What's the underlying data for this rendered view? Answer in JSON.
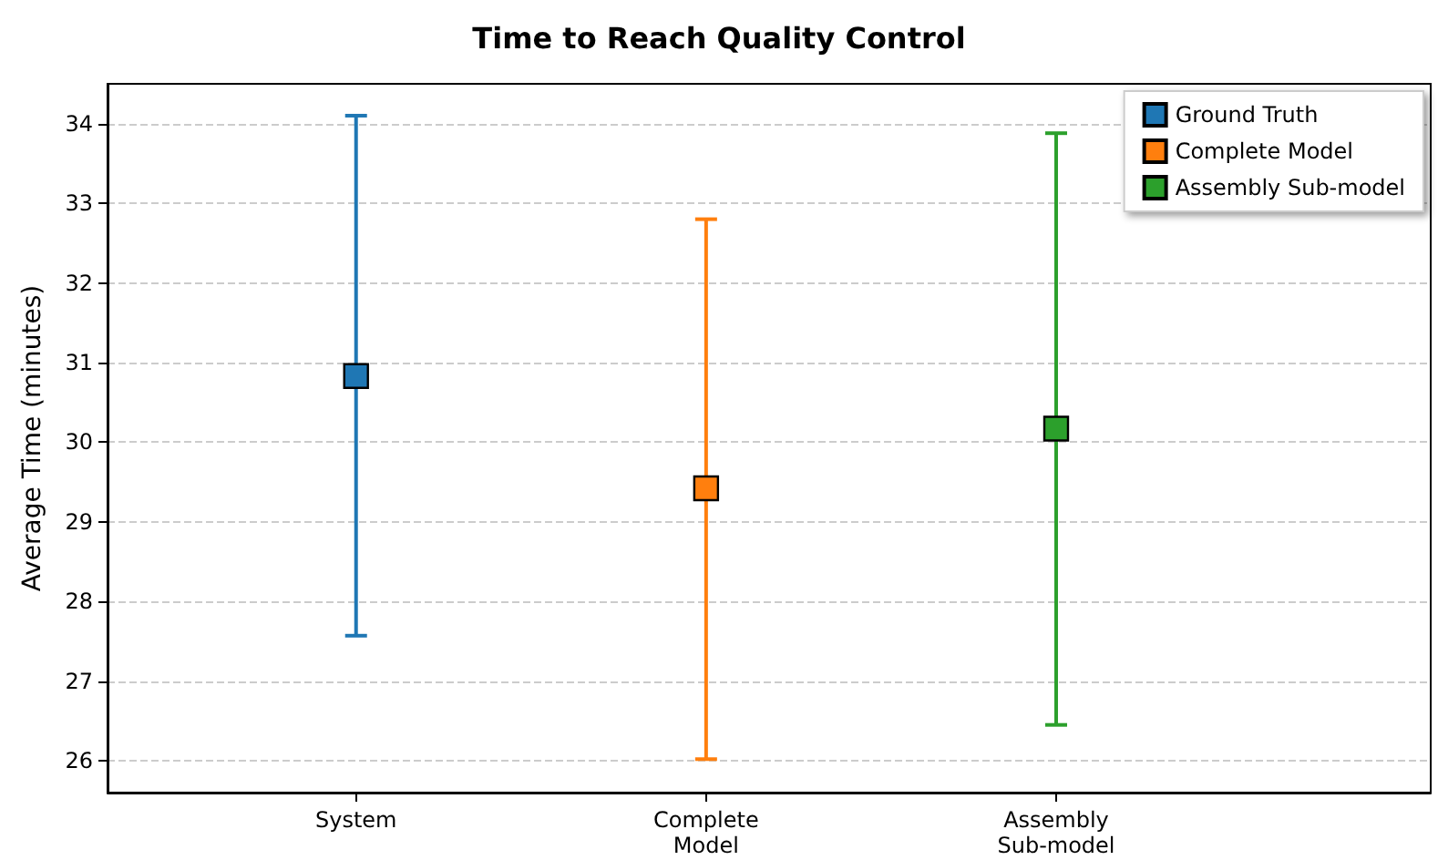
{
  "chart_data": {
    "type": "scatter",
    "title": "Time to Reach Quality Control",
    "ylabel": "Average Time (minutes)",
    "categories": [
      "System",
      "Complete\nModel",
      "Assembly\nSub-model"
    ],
    "series": [
      {
        "name": "Ground Truth",
        "color": "#1f77b4",
        "values": [
          30.83,
          null,
          null
        ],
        "errors": [
          [
            27.57,
            34.1
          ],
          null,
          null
        ]
      },
      {
        "name": "Complete Model",
        "color": "#ff7f0e",
        "values": [
          null,
          29.42,
          null
        ],
        "errors": [
          null,
          [
            26.02,
            32.8
          ],
          null
        ]
      },
      {
        "name": "Assembly Sub-model",
        "color": "#2ca02c",
        "values": [
          null,
          null,
          30.17
        ],
        "errors": [
          null,
          null,
          [
            26.45,
            33.88
          ]
        ]
      }
    ],
    "ylim": [
      25.6,
      34.5
    ],
    "yticks": [
      26,
      27,
      28,
      29,
      30,
      31,
      32,
      33,
      34
    ],
    "grid": "y",
    "legend": "top right",
    "marker": "square"
  }
}
